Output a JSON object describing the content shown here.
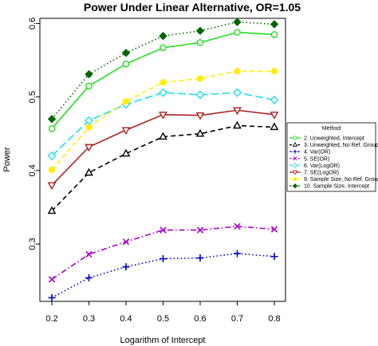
{
  "chart_data": {
    "type": "line",
    "title": "Power Under Linear Alternative, OR=1.05",
    "xlabel": "Logarithm of Intercept",
    "ylabel": "Power",
    "x": [
      0.2,
      0.3,
      0.4,
      0.5,
      0.6,
      0.7,
      0.8
    ],
    "x_ticks": [
      "0.2",
      "0.3",
      "0.4",
      "0.5",
      "0.6",
      "0.7",
      "0.8"
    ],
    "y_ticks": [
      "0.3",
      "0.4",
      "0.5",
      "0.6"
    ],
    "y_tick_values": [
      0.3,
      0.4,
      0.5,
      0.6
    ],
    "xlim": [
      0.2,
      0.8
    ],
    "ylim": [
      0.222,
      0.607
    ],
    "grid": false,
    "legend": {
      "title": "Method",
      "position": "right"
    },
    "series": [
      {
        "name": "2. Unweighted, Intercept",
        "color": "#22dd22",
        "dash": "solid",
        "marker": "circle",
        "values": [
          0.457,
          0.515,
          0.545,
          0.567,
          0.574,
          0.588,
          0.585
        ]
      },
      {
        "name": "3. Unweighted, No Ref. Group",
        "color": "#000000",
        "dash": "dashed",
        "marker": "triangle",
        "values": [
          0.345,
          0.397,
          0.423,
          0.446,
          0.45,
          0.461,
          0.459
        ]
      },
      {
        "name": "4. Var(OR)",
        "color": "#0000cc",
        "dash": "dotted",
        "marker": "plus",
        "values": [
          0.227,
          0.254,
          0.269,
          0.28,
          0.281,
          0.287,
          0.283
        ]
      },
      {
        "name": "5. SE(OR)",
        "color": "#aa00cc",
        "dash": "dashdot",
        "marker": "x",
        "values": [
          0.252,
          0.286,
          0.303,
          0.319,
          0.319,
          0.324,
          0.32
        ]
      },
      {
        "name": "6. Var(LogOR)",
        "color": "#22ddee",
        "dash": "longdash",
        "marker": "diamond",
        "values": [
          0.42,
          0.468,
          0.49,
          0.506,
          0.503,
          0.506,
          0.496
        ]
      },
      {
        "name": "7. SE(LogOR)",
        "color": "#aa2222",
        "dash": "solid",
        "marker": "triangle-down",
        "values": [
          0.38,
          0.432,
          0.455,
          0.476,
          0.475,
          0.482,
          0.476
        ]
      },
      {
        "name": "9. Sample Size, No Ref. Group",
        "color": "#ffee00",
        "dash": "dashed",
        "marker": "circle-filled",
        "values": [
          0.401,
          0.459,
          0.494,
          0.52,
          0.525,
          0.535,
          0.535
        ]
      },
      {
        "name": "10. Sample Size, Intercept",
        "color": "#006600",
        "dash": "dotted",
        "marker": "diamond-filled",
        "values": [
          0.47,
          0.531,
          0.56,
          0.583,
          0.59,
          0.602,
          0.599
        ]
      }
    ]
  }
}
